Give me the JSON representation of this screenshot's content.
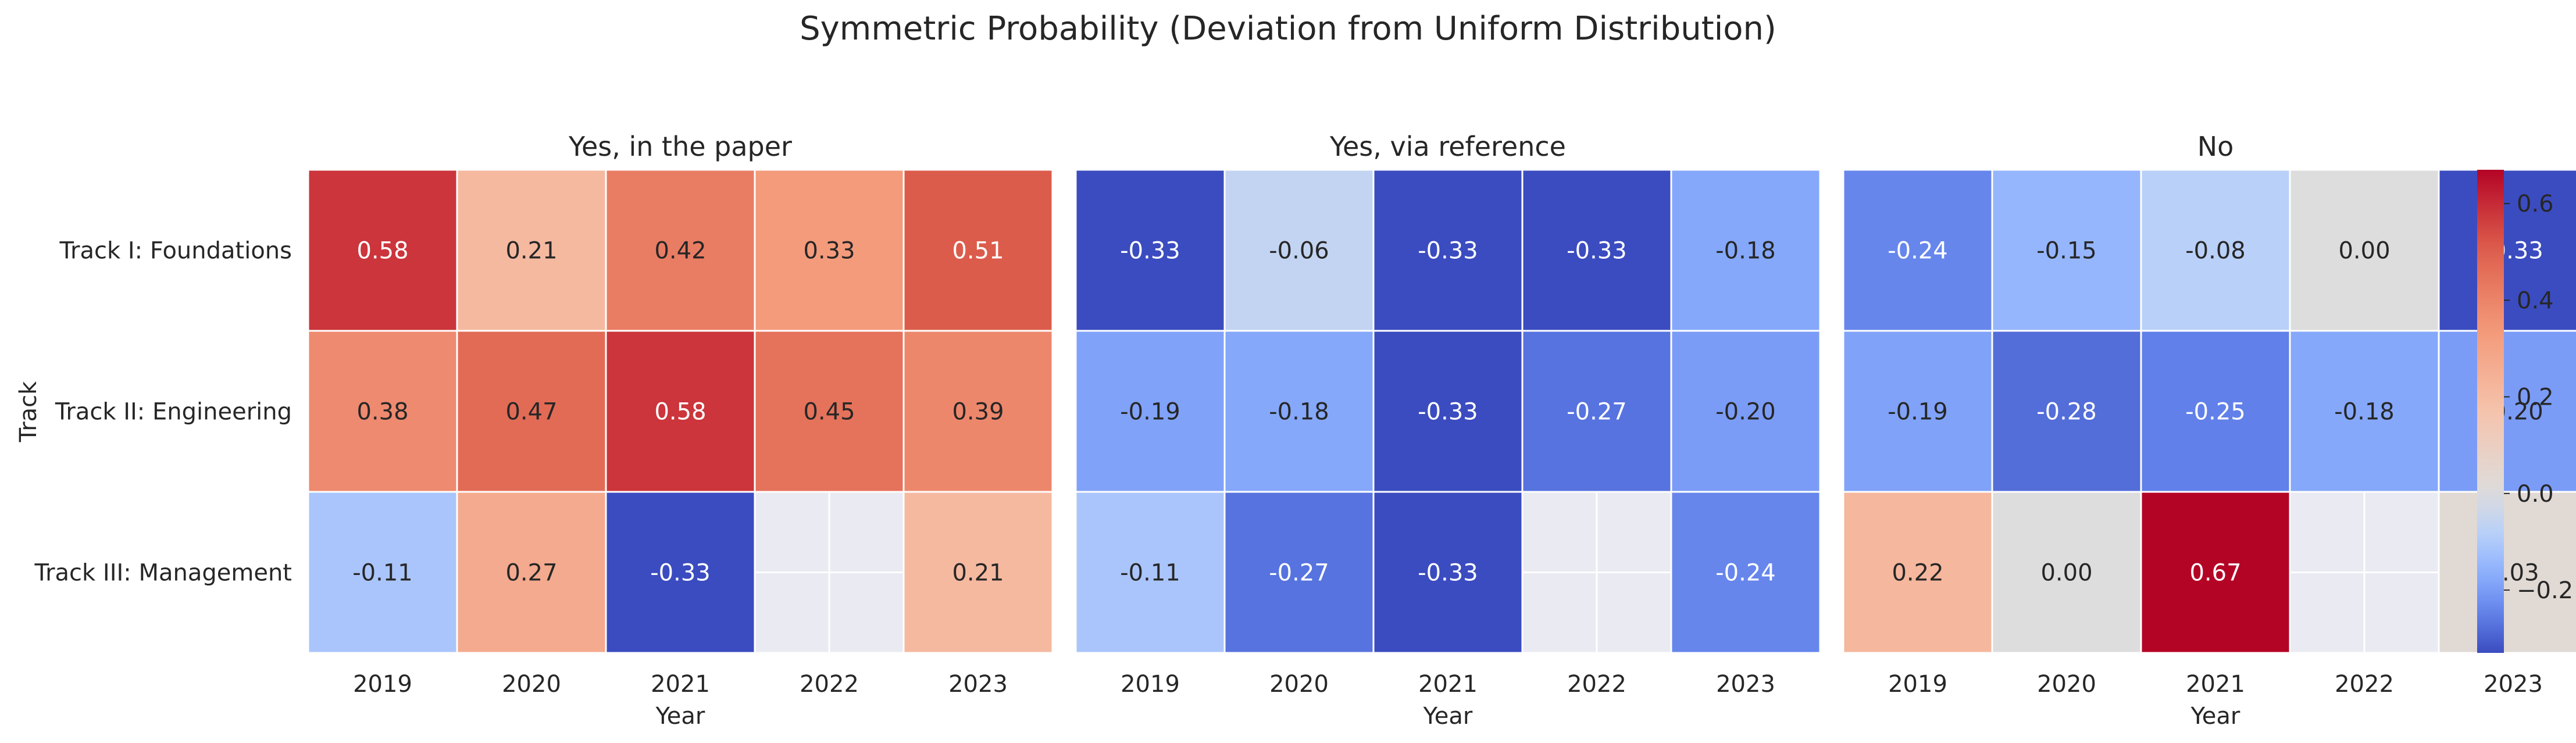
{
  "chart_data": {
    "type": "heatmap",
    "title": "Symmetric Probability (Deviation from Uniform Distribution)",
    "ylabel": "Track",
    "xlabel": "Year",
    "rows": [
      "Track I: Foundations",
      "Track II: Engineering",
      "Track III: Management"
    ],
    "columns": [
      "2019",
      "2020",
      "2021",
      "2022",
      "2023"
    ],
    "colorbar": {
      "ticks": [
        -0.2,
        0.0,
        0.2,
        0.4,
        0.6
      ],
      "tick_labels": [
        "−0.2",
        "0.0",
        "0.2",
        "0.4",
        "0.6"
      ],
      "vmin": -0.33,
      "vmax": 0.67,
      "center": 0,
      "cmap": "coolwarm"
    },
    "panels": [
      {
        "title": "Yes, in the paper",
        "values": [
          [
            0.58,
            0.21,
            0.42,
            0.33,
            0.51
          ],
          [
            0.38,
            0.47,
            0.58,
            0.45,
            0.39
          ],
          [
            -0.11,
            0.27,
            -0.33,
            null,
            0.21
          ]
        ]
      },
      {
        "title": "Yes, via reference",
        "values": [
          [
            -0.33,
            -0.06,
            -0.33,
            -0.33,
            -0.18
          ],
          [
            -0.19,
            -0.18,
            -0.33,
            -0.27,
            -0.2
          ],
          [
            -0.11,
            -0.27,
            -0.33,
            null,
            -0.24
          ]
        ]
      },
      {
        "title": "No",
        "values": [
          [
            -0.24,
            -0.15,
            -0.08,
            0.0,
            -0.33
          ],
          [
            -0.19,
            -0.28,
            -0.25,
            -0.18,
            -0.2
          ],
          [
            0.22,
            0.0,
            0.67,
            null,
            0.03
          ]
        ]
      }
    ],
    "missing_color": "#eaeaf2"
  }
}
